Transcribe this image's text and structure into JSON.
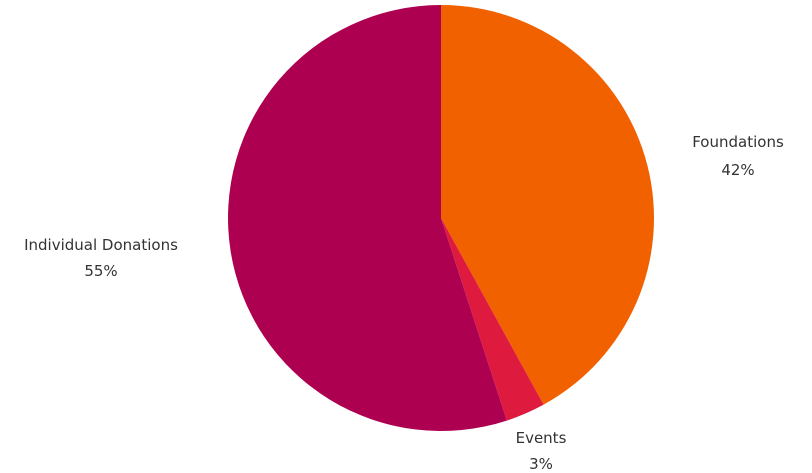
{
  "chart_data": {
    "type": "pie",
    "title": "",
    "start_angle_deg": 0,
    "direction": "clockwise",
    "legend": "none",
    "slices": [
      {
        "label": "Foundations",
        "value": 42,
        "value_label": "42%",
        "color": "#f26100"
      },
      {
        "label": "Events",
        "value": 3,
        "value_label": "3%",
        "color": "#df1a3f"
      },
      {
        "label": "Individual Donations",
        "value": 55,
        "value_label": "55%",
        "color": "#ae0051"
      }
    ]
  }
}
